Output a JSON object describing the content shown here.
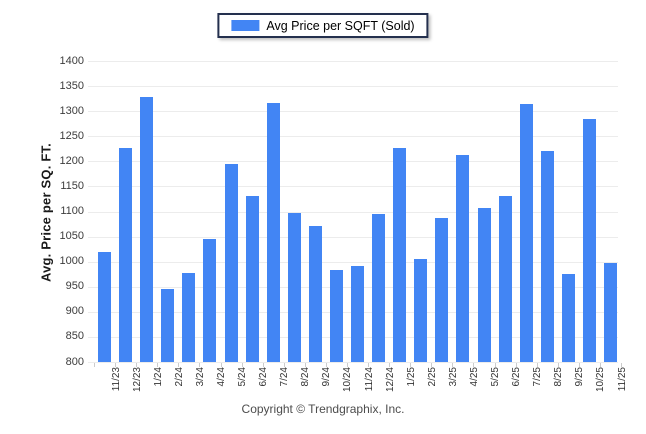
{
  "legend": {
    "label": "Avg Price per SQFT (Sold)",
    "swatch_color": "#4285f4",
    "swatch_icon": "series-color-swatch"
  },
  "chart_data": {
    "type": "bar",
    "title": "Avg Price per SQFT (Sold)",
    "categories": [
      "11/23",
      "12/23",
      "1/24",
      "2/24",
      "3/24",
      "4/24",
      "5/24",
      "6/24",
      "7/24",
      "8/24",
      "9/24",
      "10/24",
      "11/24",
      "12/24",
      "1/25",
      "2/25",
      "3/25",
      "4/25",
      "5/25",
      "6/25",
      "7/25",
      "8/25",
      "9/25",
      "10/25",
      "11/25"
    ],
    "values": [
      1020,
      1227,
      1328,
      946,
      978,
      1046,
      1195,
      1130,
      1317,
      1098,
      1072,
      983,
      992,
      1096,
      1227,
      1006,
      1087,
      1212,
      1107,
      1131,
      1315,
      1220,
      975,
      1284,
      998
    ],
    "ylabel": "Avg. Price per SQ. FT.",
    "ylim": [
      800,
      1400
    ],
    "ytick_step": 50,
    "grid": true,
    "legend_position": "top-center",
    "bar_color": "#4285f4"
  },
  "footer": {
    "copyright": "Copyright © Trendgraphix, Inc."
  }
}
